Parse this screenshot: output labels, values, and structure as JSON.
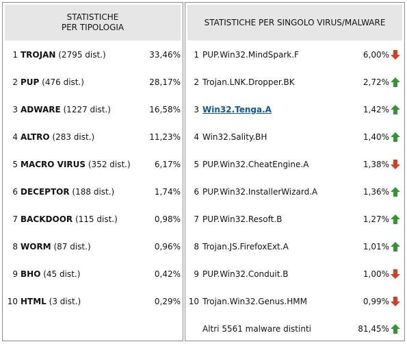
{
  "left_panel": {
    "header_line1": "STATISTICHE",
    "header_line2": "PER TIPOLOGIA",
    "rows": [
      {
        "index": "1",
        "type": "TROJAN",
        "count": "(2795 dist.)",
        "percent": "33,46%"
      },
      {
        "index": "2",
        "type": "PUP",
        "count": "(476 dist.)",
        "percent": "28,17%"
      },
      {
        "index": "3",
        "type": "ADWARE",
        "count": "(1227 dist.)",
        "percent": "16,58%"
      },
      {
        "index": "4",
        "type": "ALTRO",
        "count": "(283 dist.)",
        "percent": "11,23%"
      },
      {
        "index": "5",
        "type": "MACRO VIRUS",
        "count": "(352 dist.)",
        "percent": "6,17%"
      },
      {
        "index": "6",
        "type": "DECEPTOR",
        "count": "(188 dist.)",
        "percent": "1,74%"
      },
      {
        "index": "7",
        "type": "BACKDOOR",
        "count": "(115 dist.)",
        "percent": "0,98%"
      },
      {
        "index": "8",
        "type": "WORM",
        "count": "(87 dist.)",
        "percent": "0,96%"
      },
      {
        "index": "9",
        "type": "BHO",
        "count": "(45 dist.)",
        "percent": "0,42%"
      },
      {
        "index": "10",
        "type": "HTML",
        "count": "(3 dist.)",
        "percent": "0,29%"
      }
    ]
  },
  "right_panel": {
    "header": "STATISTICHE PER SINGOLO VIRUS/MALWARE",
    "rows": [
      {
        "index": "1",
        "name": "PUP.Win32.MindSpark.F",
        "percent": "6,00%",
        "trend": "down",
        "link": false
      },
      {
        "index": "2",
        "name": "Trojan.LNK.Dropper.BK",
        "percent": "2,72%",
        "trend": "up",
        "link": false
      },
      {
        "index": "3",
        "name": "Win32.Tenga.A",
        "percent": "1,42%",
        "trend": "up",
        "link": true
      },
      {
        "index": "4",
        "name": "Win32.Sality.BH",
        "percent": "1,40%",
        "trend": "up",
        "link": false
      },
      {
        "index": "5",
        "name": "PUP.Win32.CheatEngine.A",
        "percent": "1,38%",
        "trend": "down",
        "link": false
      },
      {
        "index": "6",
        "name": "PUP.Win32.InstallerWizard.A",
        "percent": "1,36%",
        "trend": "up",
        "link": false
      },
      {
        "index": "7",
        "name": "PUP.Win32.Resoft.B",
        "percent": "1,27%",
        "trend": "up",
        "link": false
      },
      {
        "index": "8",
        "name": "Trojan.JS.FirefoxExt.A",
        "percent": "1,01%",
        "trend": "up",
        "link": false
      },
      {
        "index": "9",
        "name": "PUP.Win32.Conduit.B",
        "percent": "1,00%",
        "trend": "down",
        "link": false
      },
      {
        "index": "10",
        "name": "Trojan.Win32.Genus.HMM",
        "percent": "0,99%",
        "trend": "down",
        "link": false
      }
    ],
    "other": {
      "label": "Altri 5561 malware distinti",
      "percent": "81,45%",
      "trend": "up"
    }
  },
  "colors": {
    "up": "#2e9a2e",
    "down": "#e03a1a",
    "link": "#0a57a8",
    "header_bg": "#e6e6e6",
    "border": "#8a8a8a"
  }
}
